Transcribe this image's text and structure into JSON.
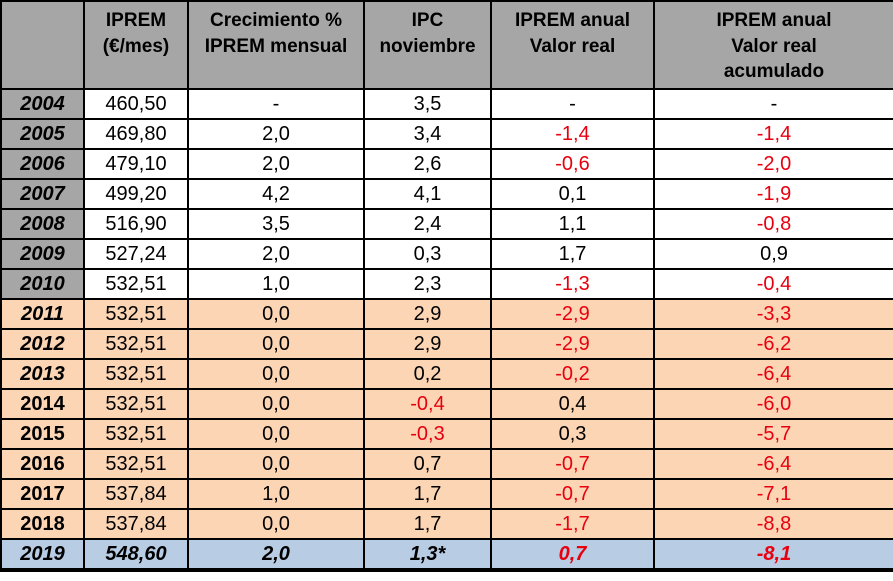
{
  "colors": {
    "header_bg": "#a6a6a6",
    "year_bg": "#a6a6a6",
    "white_bg": "#ffffff",
    "orange_bg": "#fcd5b4",
    "blue_bg": "#b8cce4",
    "negative_text": "#e8000f",
    "text": "#000000",
    "border": "#000000"
  },
  "chart_data": {
    "type": "table",
    "title": "",
    "columns": [
      [
        ""
      ],
      [
        "IPREM",
        "(€/mes)"
      ],
      [
        "Crecimiento %",
        "IPREM mensual"
      ],
      [
        "IPC",
        "noviembre"
      ],
      [
        "IPREM anual",
        "Valor real"
      ],
      [
        "IPREM anual",
        "Valor real",
        "acumulado"
      ]
    ],
    "rows": [
      {
        "year": "2004",
        "theme": "white",
        "year_italic": true,
        "cells": [
          {
            "text": "460,50",
            "red": false
          },
          {
            "text": "-",
            "red": false
          },
          {
            "text": "3,5",
            "red": false
          },
          {
            "text": "-",
            "red": false
          },
          {
            "text": "-",
            "red": false
          }
        ]
      },
      {
        "year": "2005",
        "theme": "white",
        "year_italic": true,
        "cells": [
          {
            "text": "469,80",
            "red": false
          },
          {
            "text": "2,0",
            "red": false
          },
          {
            "text": "3,4",
            "red": false
          },
          {
            "text": "-1,4",
            "red": true
          },
          {
            "text": "-1,4",
            "red": true
          }
        ]
      },
      {
        "year": "2006",
        "theme": "white",
        "year_italic": true,
        "cells": [
          {
            "text": "479,10",
            "red": false
          },
          {
            "text": "2,0",
            "red": false
          },
          {
            "text": "2,6",
            "red": false
          },
          {
            "text": "-0,6",
            "red": true
          },
          {
            "text": "-2,0",
            "red": true
          }
        ]
      },
      {
        "year": "2007",
        "theme": "white",
        "year_italic": true,
        "cells": [
          {
            "text": "499,20",
            "red": false
          },
          {
            "text": "4,2",
            "red": false
          },
          {
            "text": "4,1",
            "red": false
          },
          {
            "text": "0,1",
            "red": false
          },
          {
            "text": "-1,9",
            "red": true
          }
        ]
      },
      {
        "year": "2008",
        "theme": "white",
        "year_italic": true,
        "cells": [
          {
            "text": "516,90",
            "red": false
          },
          {
            "text": "3,5",
            "red": false
          },
          {
            "text": "2,4",
            "red": false
          },
          {
            "text": "1,1",
            "red": false
          },
          {
            "text": "-0,8",
            "red": true
          }
        ]
      },
      {
        "year": "2009",
        "theme": "white",
        "year_italic": true,
        "cells": [
          {
            "text": "527,24",
            "red": false
          },
          {
            "text": "2,0",
            "red": false
          },
          {
            "text": "0,3",
            "red": false
          },
          {
            "text": "1,7",
            "red": false
          },
          {
            "text": "0,9",
            "red": false
          }
        ]
      },
      {
        "year": "2010",
        "theme": "white",
        "year_italic": true,
        "cells": [
          {
            "text": "532,51",
            "red": false
          },
          {
            "text": "1,0",
            "red": false
          },
          {
            "text": "2,3",
            "red": false
          },
          {
            "text": "-1,3",
            "red": true
          },
          {
            "text": "-0,4",
            "red": true
          }
        ]
      },
      {
        "year": "2011",
        "theme": "orange",
        "year_italic": true,
        "cells": [
          {
            "text": "532,51",
            "red": false
          },
          {
            "text": "0,0",
            "red": false
          },
          {
            "text": "2,9",
            "red": false
          },
          {
            "text": "-2,9",
            "red": true
          },
          {
            "text": "-3,3",
            "red": true
          }
        ]
      },
      {
        "year": "2012",
        "theme": "orange",
        "year_italic": true,
        "cells": [
          {
            "text": "532,51",
            "red": false
          },
          {
            "text": "0,0",
            "red": false
          },
          {
            "text": "2,9",
            "red": false
          },
          {
            "text": "-2,9",
            "red": true
          },
          {
            "text": "-6,2",
            "red": true
          }
        ]
      },
      {
        "year": "2013",
        "theme": "orange",
        "year_italic": true,
        "cells": [
          {
            "text": "532,51",
            "red": false
          },
          {
            "text": "0,0",
            "red": false
          },
          {
            "text": "0,2",
            "red": false
          },
          {
            "text": "-0,2",
            "red": true
          },
          {
            "text": "-6,4",
            "red": true
          }
        ]
      },
      {
        "year": "2014",
        "theme": "orange",
        "year_italic": false,
        "cells": [
          {
            "text": "532,51",
            "red": false
          },
          {
            "text": "0,0",
            "red": false
          },
          {
            "text": "-0,4",
            "red": true
          },
          {
            "text": "0,4",
            "red": false
          },
          {
            "text": "-6,0",
            "red": true
          }
        ]
      },
      {
        "year": "2015",
        "theme": "orange",
        "year_italic": false,
        "cells": [
          {
            "text": "532,51",
            "red": false
          },
          {
            "text": "0,0",
            "red": false
          },
          {
            "text": "-0,3",
            "red": true
          },
          {
            "text": "0,3",
            "red": false
          },
          {
            "text": "-5,7",
            "red": true
          }
        ]
      },
      {
        "year": "2016",
        "theme": "orange",
        "year_italic": false,
        "cells": [
          {
            "text": "532,51",
            "red": false
          },
          {
            "text": "0,0",
            "red": false
          },
          {
            "text": "0,7",
            "red": false
          },
          {
            "text": "-0,7",
            "red": true
          },
          {
            "text": "-6,4",
            "red": true
          }
        ]
      },
      {
        "year": "2017",
        "theme": "orange",
        "year_italic": false,
        "cells": [
          {
            "text": "537,84",
            "red": false
          },
          {
            "text": "1,0",
            "red": false
          },
          {
            "text": "1,7",
            "red": false
          },
          {
            "text": "-0,7",
            "red": true
          },
          {
            "text": "-7,1",
            "red": true
          }
        ]
      },
      {
        "year": "2018",
        "theme": "orange",
        "year_italic": false,
        "cells": [
          {
            "text": "537,84",
            "red": false
          },
          {
            "text": "0,0",
            "red": false
          },
          {
            "text": "1,7",
            "red": false
          },
          {
            "text": "-1,7",
            "red": true
          },
          {
            "text": "-8,8",
            "red": true
          }
        ]
      },
      {
        "year": "2019",
        "theme": "blue",
        "year_italic": true,
        "cells": [
          {
            "text": "548,60",
            "red": false
          },
          {
            "text": "2,0",
            "red": false
          },
          {
            "text": "1,3*",
            "red": false
          },
          {
            "text": "0,7",
            "red": true
          },
          {
            "text": "-8,1",
            "red": true
          }
        ]
      }
    ]
  }
}
